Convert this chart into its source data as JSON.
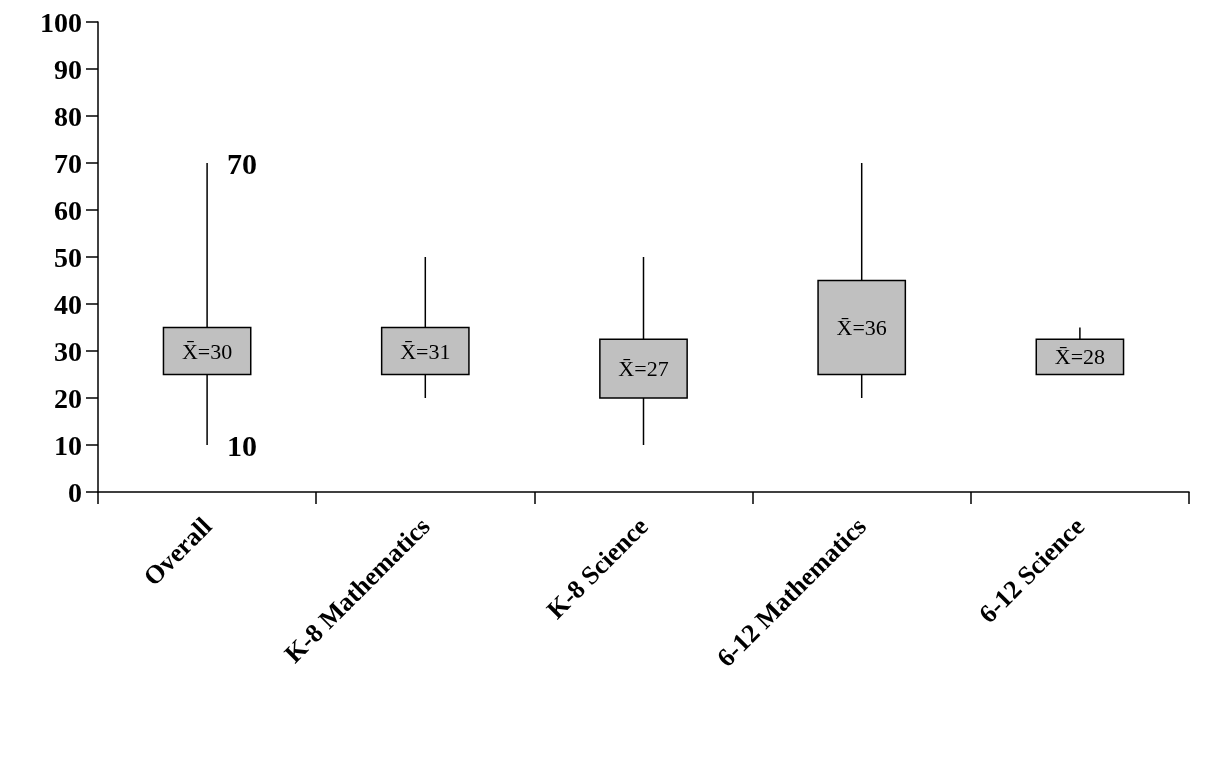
{
  "chart_data": {
    "type": "box",
    "categories": [
      "Overall",
      "K-8 Mathematics",
      "K-8 Science",
      "6-12 Mathematics",
      "6-12 Science"
    ],
    "boxes": [
      {
        "low": 10,
        "q1": 25,
        "q3": 35,
        "high": 70
      },
      {
        "low": 20,
        "q1": 25,
        "q3": 35,
        "high": 50
      },
      {
        "low": 10,
        "q1": 20,
        "q3": 32.5,
        "high": 50
      },
      {
        "low": 20,
        "q1": 25,
        "q3": 45,
        "high": 70
      },
      {
        "low": 25,
        "q1": 25,
        "q3": 32.5,
        "high": 35
      }
    ],
    "color": "#c0c0c0",
    "ylim": [
      0,
      100
    ],
    "yticks": [
      0,
      10,
      20,
      30,
      40,
      50,
      60,
      70,
      80,
      90,
      100
    ],
    "annotations": [
      "70",
      "10",
      "X̄=30",
      "X̄=31",
      "X̄=27",
      "X̄=36",
      "X̄=28"
    ],
    "grid": false
  }
}
